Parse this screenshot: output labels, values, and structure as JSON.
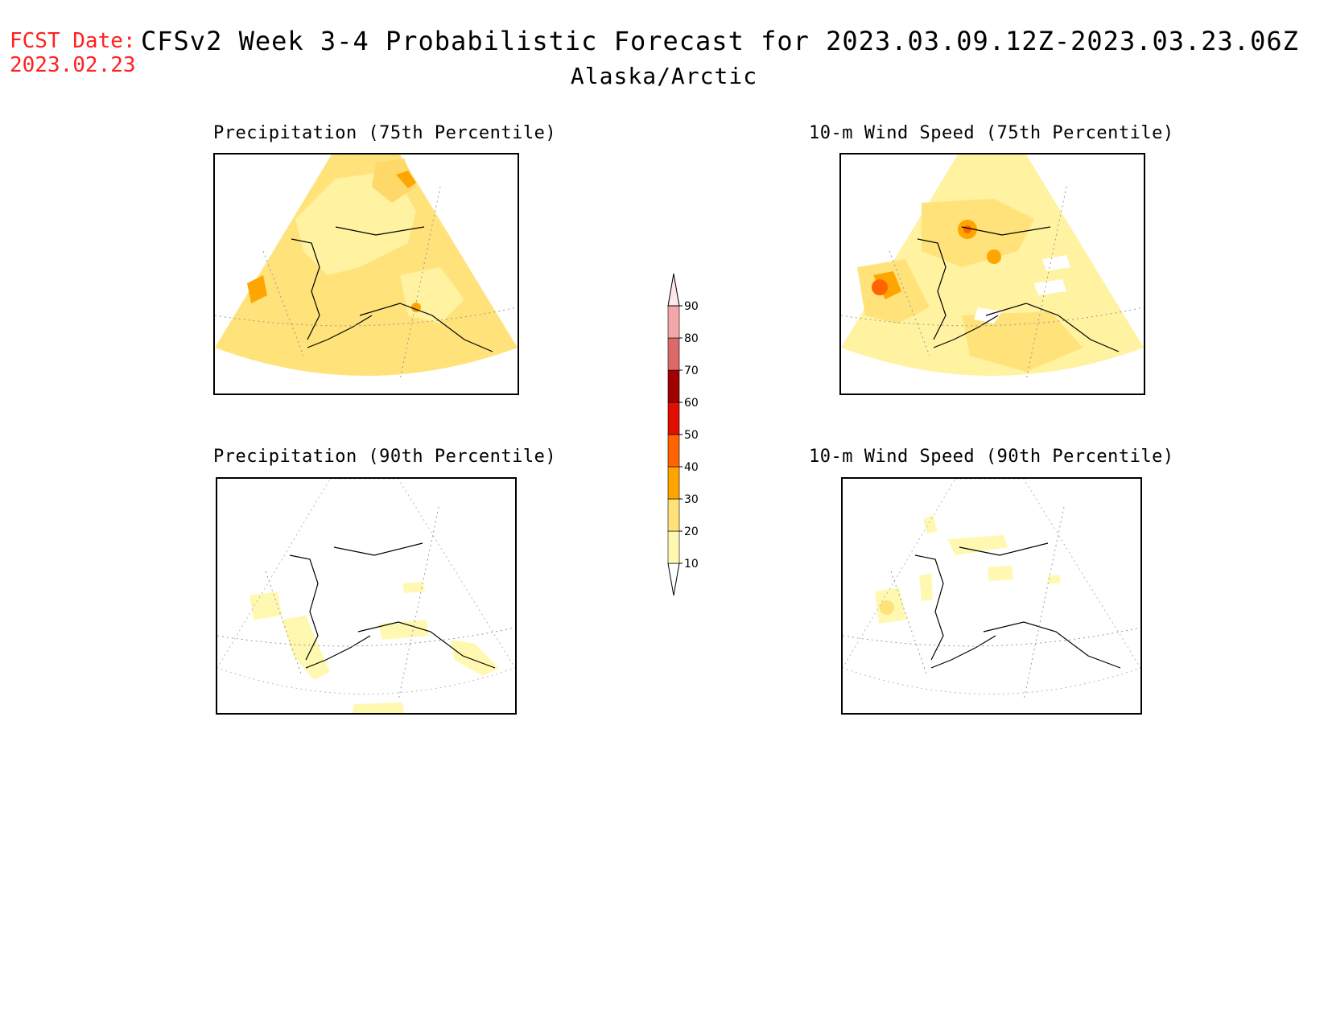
{
  "header": {
    "fcst_label": "FCST Date:",
    "fcst_date": "2023.02.23",
    "title": "CFSv2 Week 3-4 Probabilistic Forecast for 2023.03.09.12Z-2023.03.23.06Z",
    "region": "Alaska/Arctic"
  },
  "panels": {
    "precip75": {
      "title": "Precipitation (75th Percentile)"
    },
    "wind75": {
      "title": "10-m Wind Speed (75th Percentile)"
    },
    "precip90": {
      "title": "Precipitation (90th Percentile)"
    },
    "wind90": {
      "title": "10-m Wind Speed (90th Percentile)"
    }
  },
  "colorbar": {
    "levels": [
      "10",
      "20",
      "30",
      "40",
      "50",
      "60",
      "70",
      "80",
      "90"
    ],
    "colors": [
      "#fff8b0",
      "#ffe27a",
      "#ffa500",
      "#ff6400",
      "#e01000",
      "#a00000",
      "#dd6a6a",
      "#f2a8a8",
      "#fde8ec"
    ],
    "min_color": "#ffffff"
  }
}
